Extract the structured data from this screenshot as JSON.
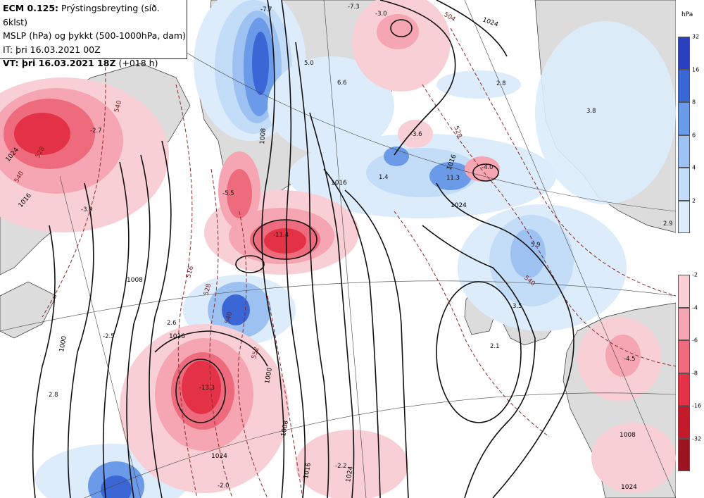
{
  "header": {
    "line1_bold": "ECM 0.125:",
    "line1_rest": "Prýstingsbreyting (síð. 6klst)",
    "line2": "MSLP (hPa) og þykkt (500-1000hPa, dam)",
    "line3": "IT: þri 16.03.2021 00Z",
    "line4_bold": "VT: þri 16.03.2021 18Z",
    "line4_rest": "(+018 h)"
  },
  "legend": {
    "unit": "hPa",
    "blue": [
      {
        "color": "#2a3fbf",
        "label": "32"
      },
      {
        "color": "#3a66d6",
        "label": "16"
      },
      {
        "color": "#6b9ae8",
        "label": "8"
      },
      {
        "color": "#9dc2f2",
        "label": "6"
      },
      {
        "color": "#c3ddf8",
        "label": "4"
      },
      {
        "color": "#dcecfb",
        "label": "2"
      }
    ],
    "red": [
      {
        "color": "#f9cfd6",
        "label": "-2"
      },
      {
        "color": "#f5a6b2",
        "label": "-4"
      },
      {
        "color": "#ee6b7d",
        "label": "-6"
      },
      {
        "color": "#e33246",
        "label": "-8"
      },
      {
        "color": "#c21a2b",
        "label": "-16"
      },
      {
        "color": "#9b1420",
        "label": "-32"
      }
    ]
  },
  "isobar_labels": [
    "1008",
    "1016",
    "1024",
    "1000",
    "1008",
    "1016",
    "1024",
    "1016",
    "1024",
    "1016",
    "1024",
    "1000",
    "1008",
    "1016",
    "1024",
    "1024",
    "1008"
  ],
  "thickness_labels": [
    "504",
    "528",
    "540",
    "540",
    "516",
    "528",
    "540",
    "552",
    "528",
    "540"
  ],
  "values": [
    {
      "text": "-7.7"
    },
    {
      "text": "-7.3"
    },
    {
      "text": "-3.0"
    },
    {
      "text": "5.0"
    },
    {
      "text": "6.6"
    },
    {
      "text": "2.8"
    },
    {
      "text": "3.8"
    },
    {
      "text": "-3.6"
    },
    {
      "text": "-4.0"
    },
    {
      "text": "11.3"
    },
    {
      "text": "1.4"
    },
    {
      "text": "-2.7"
    },
    {
      "text": "-3.9"
    },
    {
      "text": "-5.5"
    },
    {
      "text": "-11.4"
    },
    {
      "text": "5.9"
    },
    {
      "text": "2.9"
    },
    {
      "text": "3.5"
    },
    {
      "text": "2.1"
    },
    {
      "text": "-4.5"
    },
    {
      "text": "2.6"
    },
    {
      "text": "-2.5"
    },
    {
      "text": "2.8"
    },
    {
      "text": "-13.3"
    },
    {
      "text": "-2.2"
    },
    {
      "text": "-2.0"
    }
  ]
}
